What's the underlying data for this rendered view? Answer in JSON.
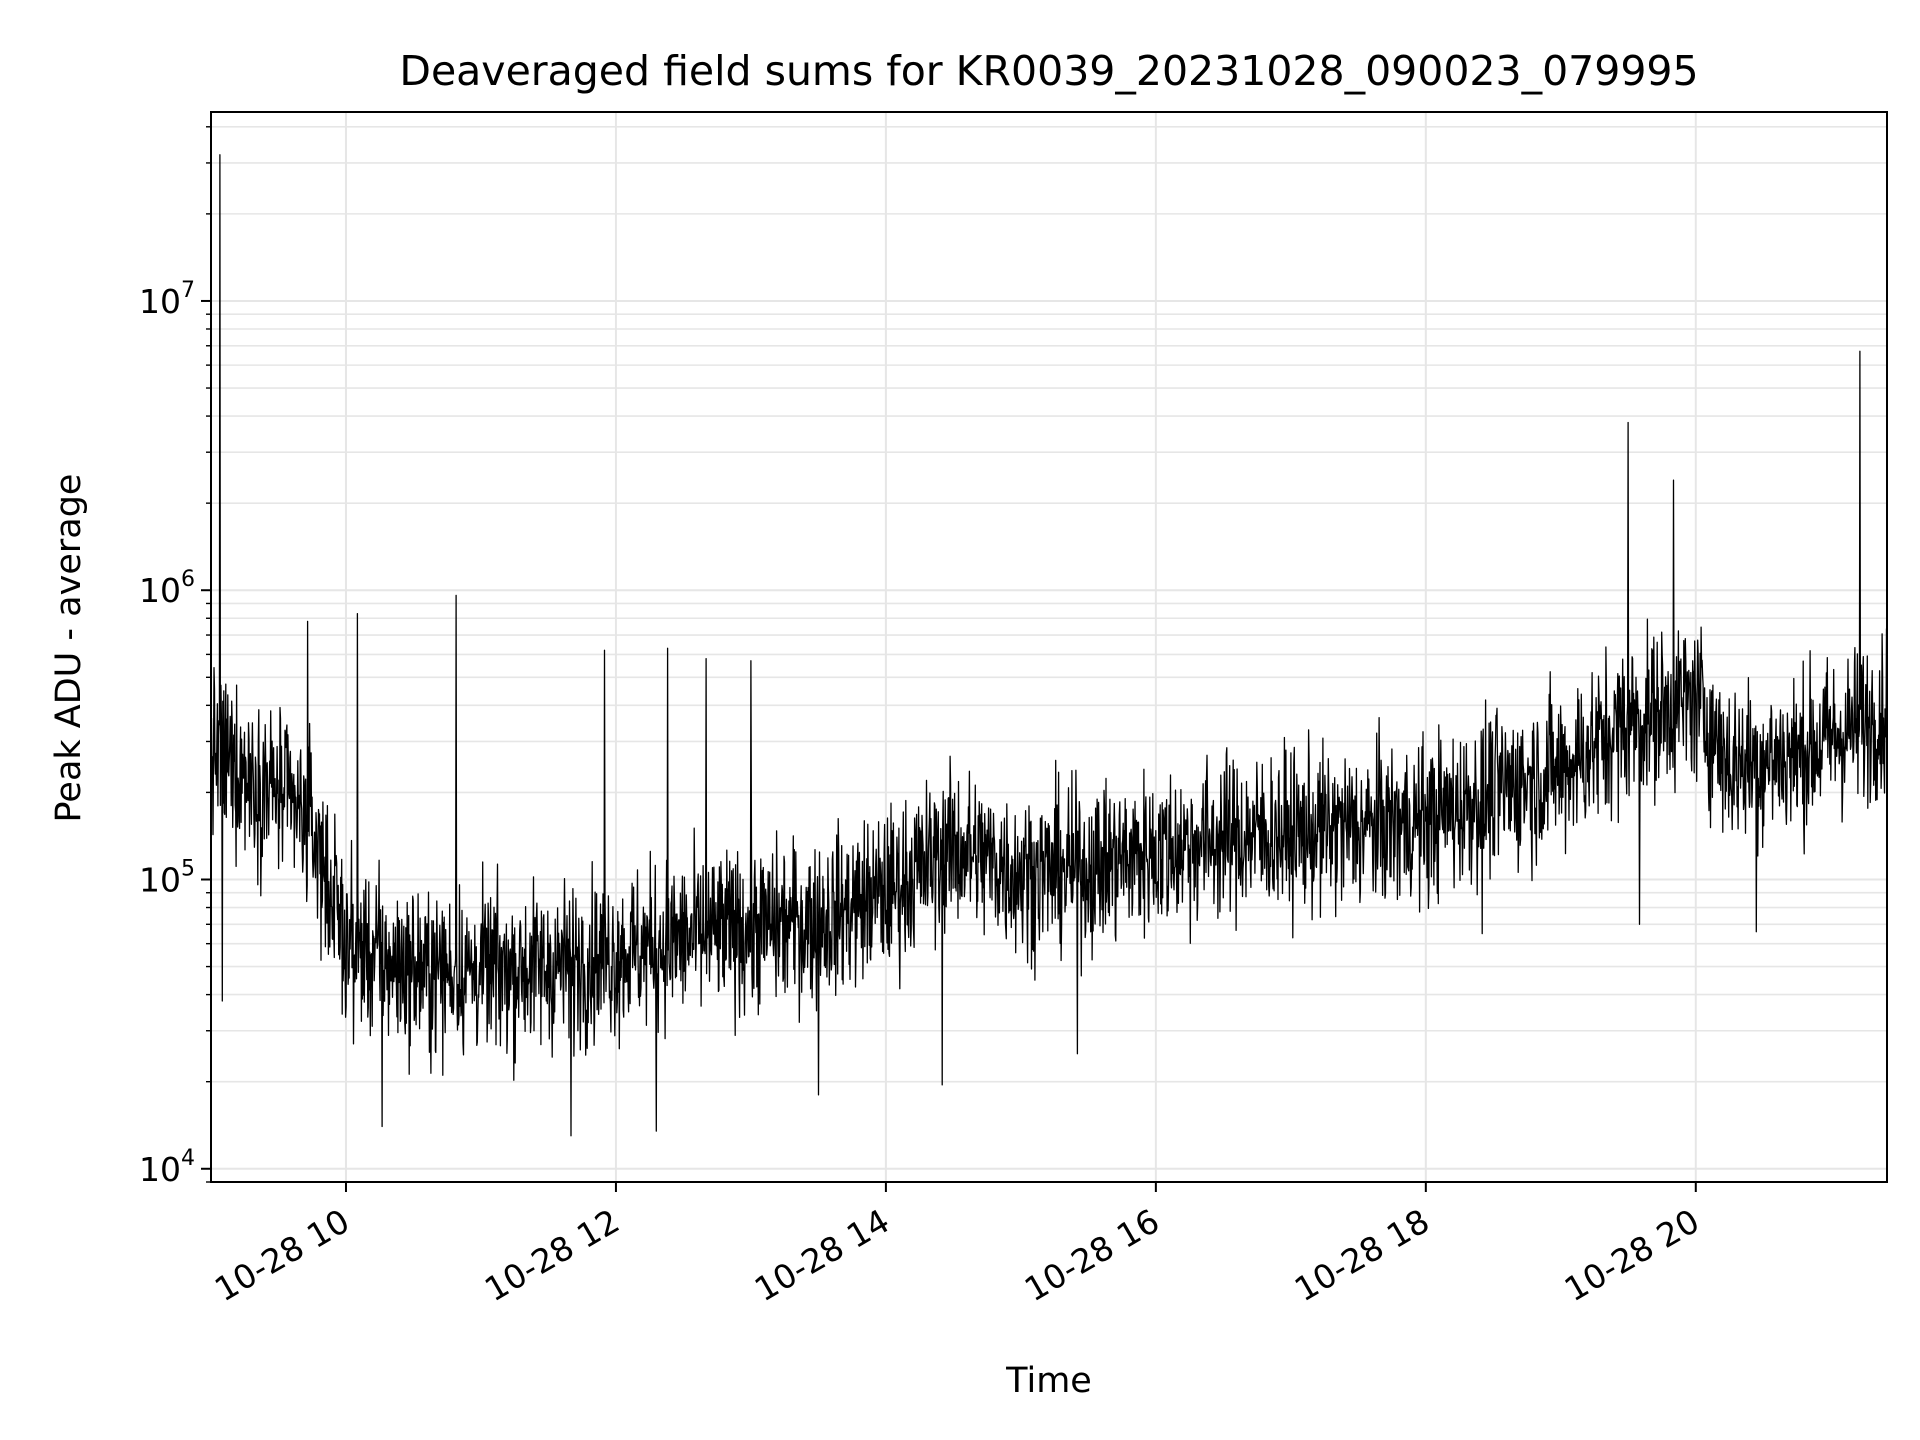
{
  "chart_data": {
    "type": "line",
    "title": "Deaveraged field sums for KR0039_20231028_090023_079995",
    "xlabel": "Time",
    "ylabel": "Peak ADU - average",
    "yscale": "log",
    "xlim": [
      "2023-10-28 09:00",
      "2023-10-28 21:25"
    ],
    "ylim": [
      9000,
      45000000
    ],
    "grid": true,
    "line_color": "#000000",
    "x_ticks": [
      {
        "value": "2023-10-28 10:00",
        "label": "10-28 10"
      },
      {
        "value": "2023-10-28 12:00",
        "label": "10-28 12"
      },
      {
        "value": "2023-10-28 14:00",
        "label": "10-28 14"
      },
      {
        "value": "2023-10-28 16:00",
        "label": "10-28 16"
      },
      {
        "value": "2023-10-28 18:00",
        "label": "10-28 18"
      },
      {
        "value": "2023-10-28 20:00",
        "label": "10-28 20"
      }
    ],
    "y_ticks": [
      {
        "value": 10000,
        "base": "10",
        "exp": "4"
      },
      {
        "value": 100000,
        "base": "10",
        "exp": "5"
      },
      {
        "value": 1000000,
        "base": "10",
        "exp": "6"
      },
      {
        "value": 10000000,
        "base": "10",
        "exp": "7"
      }
    ],
    "series": [
      {
        "trend": [
          {
            "x": "2023-10-28 09:00",
            "y": 280000
          },
          {
            "x": "2023-10-28 09:30",
            "y": 200000
          },
          {
            "x": "2023-10-28 09:45",
            "y": 150000
          },
          {
            "x": "2023-10-28 10:00",
            "y": 60000
          },
          {
            "x": "2023-10-28 10:30",
            "y": 48000
          },
          {
            "x": "2023-10-28 11:00",
            "y": 48000
          },
          {
            "x": "2023-10-28 11:30",
            "y": 50000
          },
          {
            "x": "2023-10-28 12:00",
            "y": 55000
          },
          {
            "x": "2023-10-28 12:30",
            "y": 62000
          },
          {
            "x": "2023-10-28 13:00",
            "y": 68000
          },
          {
            "x": "2023-10-28 13:30",
            "y": 72000
          },
          {
            "x": "2023-10-28 14:00",
            "y": 90000
          },
          {
            "x": "2023-10-28 14:30",
            "y": 130000
          },
          {
            "x": "2023-10-28 15:00",
            "y": 105000
          },
          {
            "x": "2023-10-28 15:30",
            "y": 110000
          },
          {
            "x": "2023-10-28 16:00",
            "y": 125000
          },
          {
            "x": "2023-10-28 16:30",
            "y": 140000
          },
          {
            "x": "2023-10-28 17:00",
            "y": 145000
          },
          {
            "x": "2023-10-28 17:30",
            "y": 150000
          },
          {
            "x": "2023-10-28 18:00",
            "y": 160000
          },
          {
            "x": "2023-10-28 18:30",
            "y": 200000
          },
          {
            "x": "2023-10-28 19:00",
            "y": 240000
          },
          {
            "x": "2023-10-28 19:30",
            "y": 350000
          },
          {
            "x": "2023-10-28 20:00",
            "y": 420000
          },
          {
            "x": "2023-10-28 20:15",
            "y": 250000
          },
          {
            "x": "2023-10-28 20:45",
            "y": 270000
          },
          {
            "x": "2023-10-28 21:25",
            "y": 380000
          }
        ],
        "spikes": [
          {
            "x": "2023-10-28 09:04",
            "y": 32000000
          },
          {
            "x": "2023-10-28 09:05",
            "y": 38000
          },
          {
            "x": "2023-10-28 09:43",
            "y": 780000
          },
          {
            "x": "2023-10-28 10:05",
            "y": 830000
          },
          {
            "x": "2023-10-28 10:49",
            "y": 960000
          },
          {
            "x": "2023-10-28 10:16",
            "y": 14000
          },
          {
            "x": "2023-10-28 11:40",
            "y": 13000
          },
          {
            "x": "2023-10-28 11:55",
            "y": 620000
          },
          {
            "x": "2023-10-28 12:18",
            "y": 13500
          },
          {
            "x": "2023-10-28 12:23",
            "y": 630000
          },
          {
            "x": "2023-10-28 12:40",
            "y": 580000
          },
          {
            "x": "2023-10-28 13:00",
            "y": 570000
          },
          {
            "x": "2023-10-28 13:30",
            "y": 18000
          },
          {
            "x": "2023-10-28 14:25",
            "y": 19500
          },
          {
            "x": "2023-10-28 15:25",
            "y": 25000
          },
          {
            "x": "2023-10-28 18:25",
            "y": 65000
          },
          {
            "x": "2023-10-28 19:30",
            "y": 3800000
          },
          {
            "x": "2023-10-28 19:35",
            "y": 70000
          },
          {
            "x": "2023-10-28 19:50",
            "y": 2400000
          },
          {
            "x": "2023-10-28 20:27",
            "y": 66000
          },
          {
            "x": "2023-10-28 21:13",
            "y": 6700000
          }
        ]
      }
    ]
  }
}
